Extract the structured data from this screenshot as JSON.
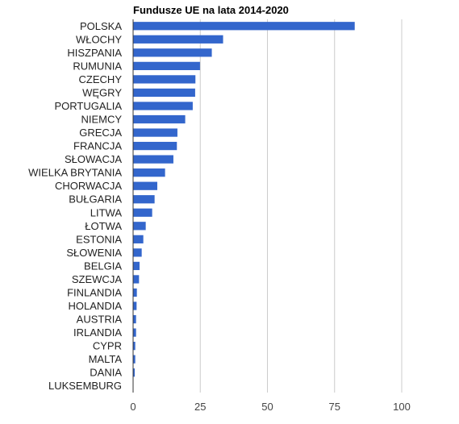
{
  "chart_data": {
    "type": "bar",
    "orientation": "horizontal",
    "title": "Fundusze UE na lata 2014-2020",
    "categories": [
      "POLSKA",
      "WŁOCHY",
      "HISZPANIA",
      "RUMUNIA",
      "CZECHY",
      "WĘGRY",
      "PORTUGALIA",
      "NIEMCY",
      "GRECJA",
      "FRANCJA",
      "SŁOWACJA",
      "WIELKA BRYTANIA",
      "CHORWACJA",
      "BUŁGARIA",
      "LITWA",
      "ŁOTWA",
      "ESTONIA",
      "SŁOWENIA",
      "BELGIA",
      "SZEWCJA",
      "FINLANDIA",
      "HOLANDIA",
      "AUSTRIA",
      "IRLANDIA",
      "CYPR",
      "MALTA",
      "DANIA",
      "LUKSEMBURG"
    ],
    "values": [
      82.5,
      33.5,
      29.3,
      24.9,
      23.2,
      23.1,
      22.2,
      19.4,
      16.5,
      16.3,
      15.0,
      11.9,
      9.0,
      8.0,
      7.1,
      4.7,
      3.8,
      3.2,
      2.4,
      2.2,
      1.4,
      1.3,
      1.1,
      1.1,
      0.8,
      0.8,
      0.6,
      0.05
    ],
    "xticks": [
      "0",
      "25",
      "50",
      "75",
      "100"
    ],
    "xlim": [
      0,
      100
    ],
    "grid": true,
    "colors": {
      "bar": "#3366cc",
      "grid": "#cccccc",
      "axis": "#333333"
    }
  }
}
